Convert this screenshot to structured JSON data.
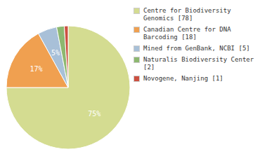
{
  "chart_data": {
    "type": "pie",
    "categories": [
      "Centre for Biodiversity\nGenomics [78]",
      "Canadian Centre for DNA\nBarcoding [18]",
      "Mined from GenBank, NCBI [5]",
      "Naturalis Biodiversity Center [2]",
      "Novogene, Nanjing [1]"
    ],
    "values": [
      75,
      17,
      5,
      2,
      1
    ],
    "value_labels": [
      "75%",
      "17%",
      "5%",
      null,
      null
    ],
    "colors": [
      "#d4dc91",
      "#f0a050",
      "#a8c0d8",
      "#8db870",
      "#cc5040"
    ],
    "legend": "right"
  }
}
